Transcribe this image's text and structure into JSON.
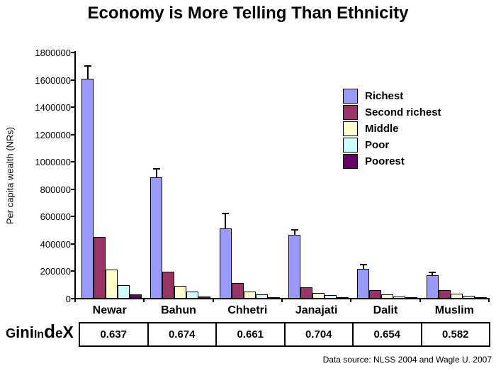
{
  "title": "Economy is More Telling Than Ethnicity",
  "chart_data": {
    "type": "bar",
    "title": "Economy is More Telling Than Ethnicity",
    "xlabel": "",
    "ylabel": "Per capita wealth (NRs)",
    "ylim": [
      0,
      1800000
    ],
    "ytick_step": 200000,
    "grid": false,
    "legend_position": "upper-right",
    "categories": [
      "Newar",
      "Bahun",
      "Chhetri",
      "Janajati",
      "Dalit",
      "Muslim"
    ],
    "series": [
      {
        "name": "Richest",
        "color": "#9999FF",
        "values": [
          1610000,
          885000,
          515000,
          465000,
          220000,
          170000
        ],
        "error_up": [
          90000,
          65000,
          110000,
          40000,
          30000,
          20000
        ]
      },
      {
        "name": "Second richest",
        "color": "#993366",
        "values": [
          450000,
          195000,
          115000,
          85000,
          60000,
          60000
        ]
      },
      {
        "name": "Middle",
        "color": "#FFFFCC",
        "values": [
          215000,
          95000,
          50000,
          40000,
          30000,
          35000
        ]
      },
      {
        "name": "Poor",
        "color": "#CCFFFF",
        "values": [
          100000,
          50000,
          30000,
          25000,
          18000,
          22000
        ]
      },
      {
        "name": "Poorest",
        "color": "#660066",
        "values": [
          30000,
          18000,
          10000,
          8000,
          6000,
          8000
        ]
      }
    ]
  },
  "gini": {
    "label": "Gini IndeX",
    "values": [
      "0.637",
      "0.674",
      "0.661",
      "0.704",
      "0.654",
      "0.582"
    ]
  },
  "source_note": "Data source: NLSS 2004 and Wagle U. 2007"
}
